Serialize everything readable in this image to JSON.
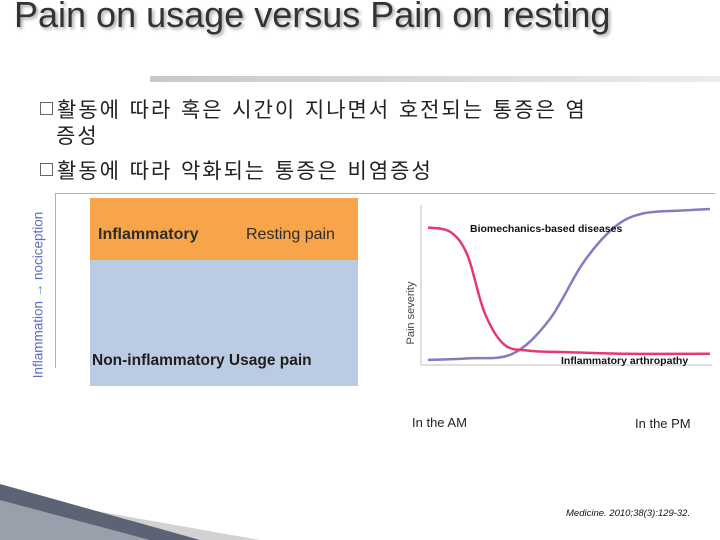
{
  "title": "Pain on usage versus Pain on resting",
  "bullets": {
    "b1_line1": "활동에 따라 혹은 시간이 지나면서 호전되는 통증은 염",
    "b1_line2": "증성",
    "b2": "활동에 따라 악화되는 통증은 비염증성"
  },
  "side_axis_label": "Inflammation → nociception",
  "quadrant": {
    "top_left": "Inflammatory",
    "top_right": "Resting pain",
    "bottom": "Non-inflammatory  Usage pain",
    "colors": {
      "top": "#f7a44a",
      "bottom": "#bccbe4"
    }
  },
  "chart_data": {
    "type": "line",
    "ylabel": "Pain severity",
    "x_ticks": [
      "In the AM",
      "In the PM"
    ],
    "series": [
      {
        "name": "Biomechanics-based diseases",
        "color": "#8a78c0",
        "x": [
          0,
          0.14,
          0.3,
          0.43,
          0.55,
          0.66,
          0.76,
          0.9,
          1.0
        ],
        "y": [
          0.02,
          0.03,
          0.06,
          0.28,
          0.65,
          0.88,
          0.97,
          0.99,
          1.0
        ]
      },
      {
        "name": "Inflammatory arthropathy",
        "color": "#e8396b",
        "x": [
          0,
          0.08,
          0.14,
          0.2,
          0.27,
          0.36,
          0.5,
          0.7,
          1.0
        ],
        "y": [
          0.88,
          0.85,
          0.7,
          0.33,
          0.12,
          0.08,
          0.07,
          0.06,
          0.06
        ]
      }
    ]
  },
  "credit": "Medicine. 2010;38(3):129-32."
}
